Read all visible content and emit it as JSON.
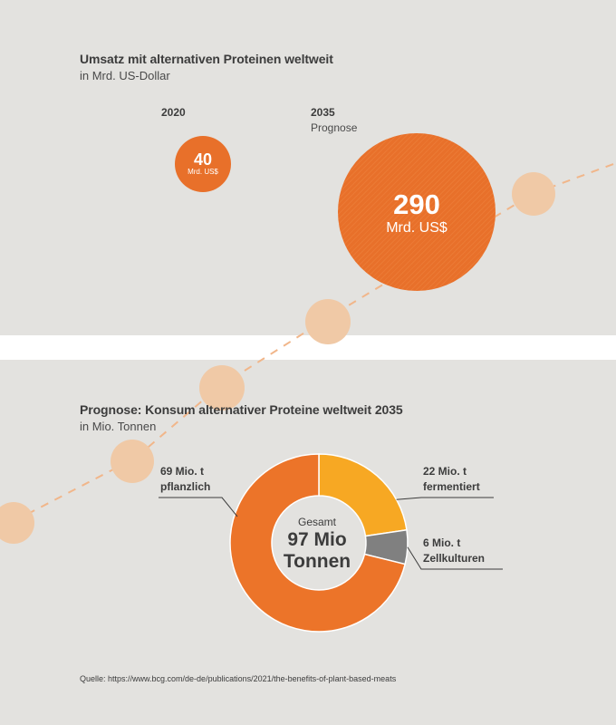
{
  "colors": {
    "background": "#e3e2df",
    "orange": "#e8702a",
    "orange_donut": "#ec7429",
    "yellow": "#f7a823",
    "gray": "#808080",
    "decor_circle": "#f0c9a6",
    "decor_line": "#f1b68a"
  },
  "chart_data": [
    {
      "type": "bubble",
      "title": "Umsatz mit alternativen Proteinen weltweit",
      "subtitle": "in Mrd. US-Dollar",
      "categories": [
        "2020",
        "2035"
      ],
      "category_notes": [
        "",
        "Prognose"
      ],
      "values": [
        40,
        290
      ],
      "value_labels": [
        "40",
        "290"
      ],
      "unit_labels": [
        "Mrd. US$",
        "Mrd. US$"
      ]
    },
    {
      "type": "pie",
      "title": "Prognose: Konsum alternativer Proteine weltweit 2035",
      "subtitle": "in Mio. Tonnen",
      "center_caption": "Gesamt",
      "center_value": "97 Mio",
      "center_unit": "Tonnen",
      "slices": [
        {
          "label": "pflanzlich",
          "value": 69,
          "value_label": "69 Mio. t"
        },
        {
          "label": "fermentiert",
          "value": 22,
          "value_label": "22 Mio. t"
        },
        {
          "label": "Zellkulturen",
          "value": 6,
          "value_label": "6 Mio. t"
        }
      ]
    }
  ],
  "source": "Quelle: https://www.bcg.com/de-de/publications/2021/the-benefits-of-plant-based-meats"
}
